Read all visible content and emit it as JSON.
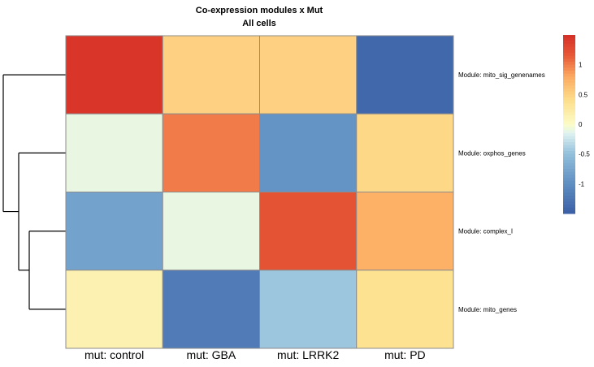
{
  "chart_data": {
    "type": "heatmap",
    "title": "Co-expression modules x Mut",
    "subtitle": "All cells",
    "columns": [
      "mut:  control",
      "mut:  GBA",
      "mut:  LRRK2",
      "mut:  PD"
    ],
    "rows": [
      "Module:  mito_sig_genenames",
      "Module:  oxphos_genes",
      "Module:  complex_I",
      "Module:  mito_genes"
    ],
    "values": [
      [
        1.45,
        0.5,
        0.5,
        -1.4
      ],
      [
        -0.1,
        1.0,
        -0.95,
        0.45
      ],
      [
        -0.8,
        -0.1,
        1.2,
        0.75
      ],
      [
        0.15,
        -1.2,
        -0.45,
        0.35
      ]
    ],
    "colorbar": {
      "ticks": [
        -1,
        -0.5,
        0,
        0.5,
        1
      ],
      "tick_labels": [
        "-1",
        "-0.5",
        "0",
        "0.5",
        "1"
      ],
      "range": [
        -1.5,
        1.5
      ]
    },
    "row_dendrogram": "left",
    "colors": {
      "low": "#3b5fa6",
      "mid": "#fcfcc6",
      "high": "#d62f27",
      "cell_border": "#8c8c8c"
    }
  }
}
